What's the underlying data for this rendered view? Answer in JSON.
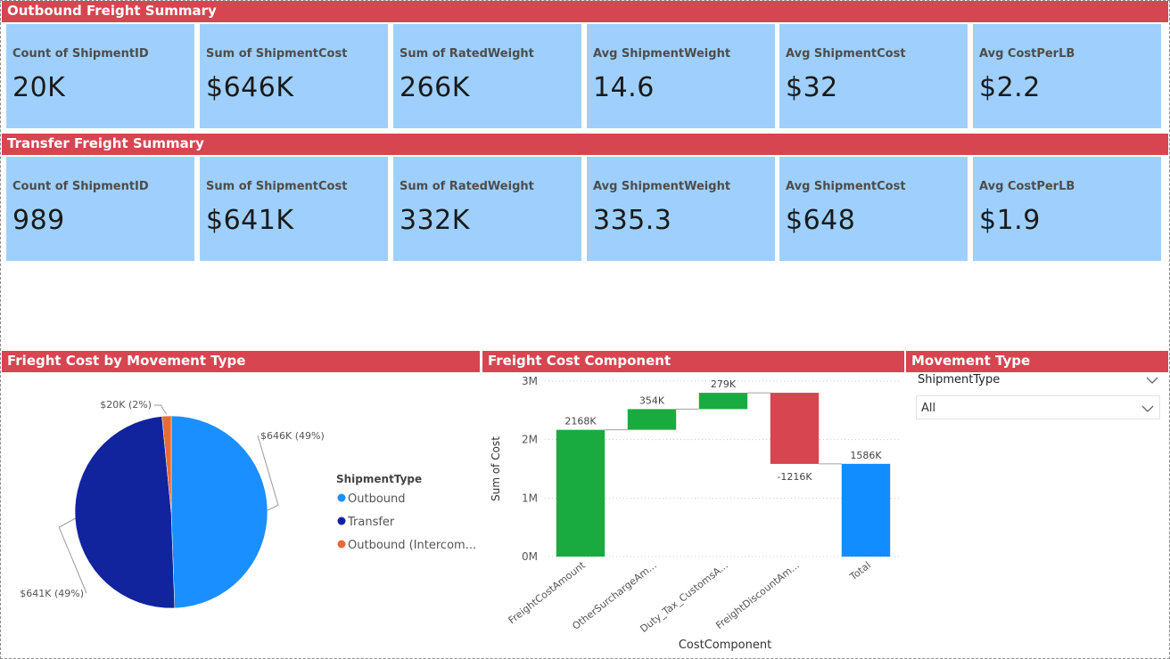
{
  "outbound": {
    "title": "Outbound Freight Summary",
    "cards": [
      {
        "label": "Count of ShipmentID",
        "value": "20K"
      },
      {
        "label": "Sum of ShipmentCost",
        "value": "$646K"
      },
      {
        "label": "Sum of RatedWeight",
        "value": "266K"
      },
      {
        "label": "Avg ShipmentWeight",
        "value": "14.6"
      },
      {
        "label": "Avg ShipmentCost",
        "value": "$32"
      },
      {
        "label": "Avg CostPerLB",
        "value": "$2.2"
      }
    ]
  },
  "transfer": {
    "title": "Transfer Freight Summary",
    "cards": [
      {
        "label": "Count of ShipmentID",
        "value": "989"
      },
      {
        "label": "Sum of ShipmentCost",
        "value": "$641K"
      },
      {
        "label": "Sum of RatedWeight",
        "value": "332K"
      },
      {
        "label": "Avg ShipmentWeight",
        "value": "335.3"
      },
      {
        "label": "Avg ShipmentCost",
        "value": "$648"
      },
      {
        "label": "Avg CostPerLB",
        "value": "$1.9"
      }
    ]
  },
  "pie_title": "Frieght Cost by Movement Type",
  "waterfall_title": "Freight Cost Component",
  "slicer": {
    "title": "Movement Type",
    "field": "ShipmentType",
    "selected": "All"
  },
  "colors": {
    "header": "#d64550",
    "card": "#9fd0fd",
    "outbound": "#1a8fff",
    "transfer": "#12239e",
    "intercompany": "#e66c37",
    "increase": "#1aab40",
    "decrease": "#d64550",
    "total": "#118dff"
  },
  "chart_data": [
    {
      "type": "pie",
      "title": "Frieght Cost by Movement Type",
      "legend_title": "ShipmentType",
      "legend_position": "right",
      "slices": [
        {
          "name": "Outbound",
          "legend_label": "Outbound",
          "value": 646,
          "data_label": "$646K (49%)"
        },
        {
          "name": "Transfer",
          "legend_label": "Transfer",
          "value": 641,
          "data_label": "$641K (49%)"
        },
        {
          "name": "Outbound (Intercompany)",
          "legend_label": "Outbound (Intercom...",
          "value": 20,
          "data_label": "$20K (2%)"
        }
      ]
    },
    {
      "type": "waterfall",
      "title": "Freight Cost Component",
      "xlabel": "CostComponent",
      "ylabel": "Sum of Cost",
      "ylim": [
        0,
        3000
      ],
      "yticks": [
        {
          "value": 0,
          "label": "0M"
        },
        {
          "value": 1000,
          "label": "1M"
        },
        {
          "value": 2000,
          "label": "2M"
        },
        {
          "value": 3000,
          "label": "3M"
        }
      ],
      "categories": [
        "FreightCostAmount",
        "OtherSurchargeAm...",
        "Duty_Tax_CustomsA...",
        "FreightDiscountAm...",
        "Total"
      ],
      "values": [
        2168,
        354,
        279,
        -1216,
        1586
      ],
      "labels": [
        "2168K",
        "354K",
        "279K",
        "-1216K",
        "1586K"
      ],
      "kinds": [
        "increase",
        "increase",
        "increase",
        "decrease",
        "total"
      ]
    }
  ]
}
